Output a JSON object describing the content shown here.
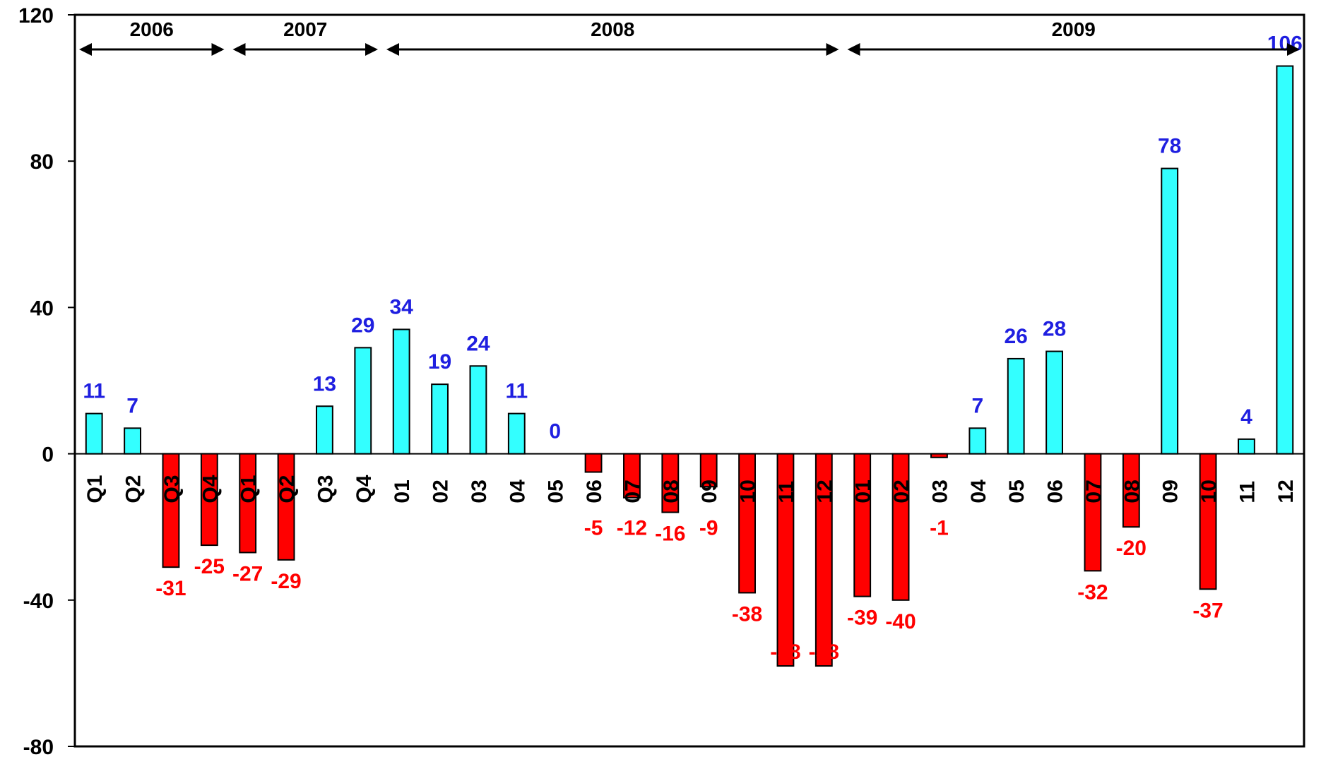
{
  "chart_data": {
    "type": "bar",
    "categories": [
      "Q1",
      "Q2",
      "Q3",
      "Q4",
      "Q1",
      "Q2",
      "Q3",
      "Q4",
      "01",
      "02",
      "03",
      "04",
      "05",
      "06",
      "07",
      "08",
      "09",
      "10",
      "11",
      "12",
      "01",
      "02",
      "03",
      "04",
      "05",
      "06",
      "07",
      "08",
      "09",
      "10",
      "11",
      "12"
    ],
    "values": [
      11,
      7,
      -31,
      -25,
      -27,
      -29,
      13,
      29,
      34,
      19,
      24,
      11,
      0,
      -5,
      -12,
      -16,
      -9,
      -38,
      -58,
      -58,
      -39,
      -40,
      -1,
      7,
      26,
      28,
      -32,
      -20,
      78,
      -37,
      4,
      106
    ],
    "data_labels": [
      "11",
      "7",
      "-31",
      "-25",
      "-27",
      "-29",
      "13",
      "29",
      "34",
      "19",
      "24",
      "11",
      "0",
      "-5",
      "-12",
      "-16",
      "-9",
      "-38",
      "-58",
      "-58",
      "-39",
      "-40",
      "-1",
      "7",
      "26",
      "28",
      "-32",
      "-20",
      "78",
      "-37",
      "4",
      "106"
    ],
    "years": [
      {
        "label": "2006",
        "start_index": 0,
        "end_index": 3
      },
      {
        "label": "2007",
        "start_index": 4,
        "end_index": 7
      },
      {
        "label": "2008",
        "start_index": 8,
        "end_index": 19
      },
      {
        "label": "2009",
        "start_index": 20,
        "end_index": 31
      }
    ],
    "y_ticks": [
      "120",
      "80",
      "40",
      "0",
      "-40",
      "-80"
    ],
    "ylim": [
      -80,
      120
    ],
    "title": "",
    "xlabel": "",
    "ylabel": "",
    "grid": false,
    "legend": "none",
    "colors": {
      "positive_bar": "#33ffff",
      "negative_bar": "#ff0000",
      "positive_label": "#1f1fe0",
      "negative_label": "#ff0000",
      "outline": "#000000"
    }
  }
}
